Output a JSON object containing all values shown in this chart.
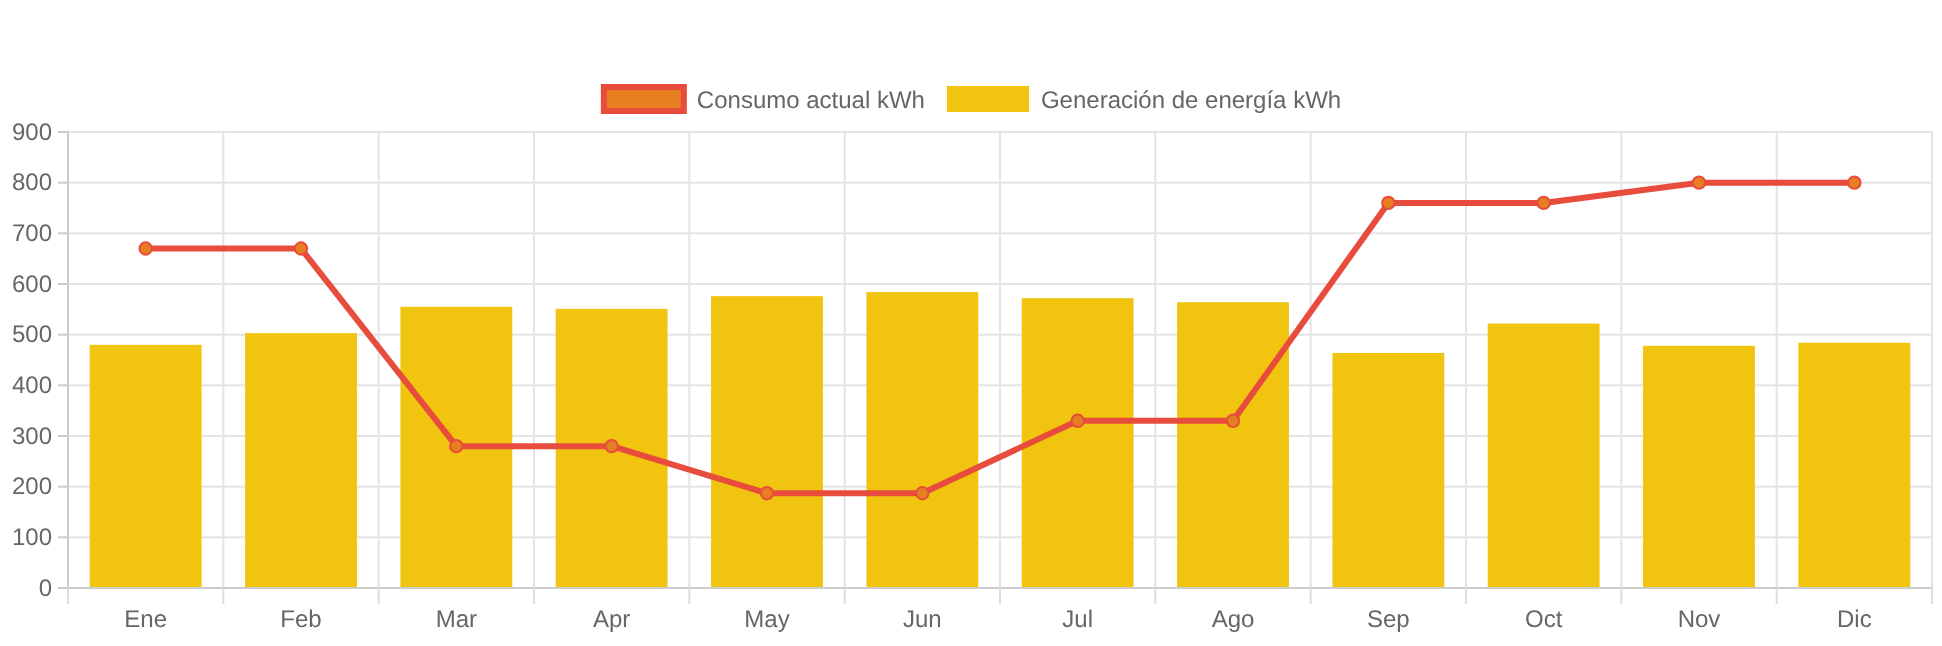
{
  "chart_data": {
    "type": "bar",
    "categories": [
      "Ene",
      "Feb",
      "Mar",
      "Apr",
      "May",
      "Jun",
      "Jul",
      "Ago",
      "Sep",
      "Oct",
      "Nov",
      "Dic"
    ],
    "series": [
      {
        "name": "Consumo actual kWh",
        "type": "line",
        "color": "#e74c3c",
        "values": [
          670,
          670,
          280,
          280,
          187,
          187,
          330,
          330,
          760,
          760,
          800,
          800
        ]
      },
      {
        "name": "Generación de energía kWh",
        "color": "#f1c40f",
        "values": [
          480,
          503,
          555,
          551,
          576,
          584,
          572,
          564,
          464,
          522,
          478,
          484
        ]
      }
    ],
    "ylim": [
      0,
      900
    ],
    "yticks": [
      0,
      100,
      200,
      300,
      400,
      500,
      600,
      700,
      800,
      900
    ],
    "grid": true,
    "legend": "top",
    "marker": "circle"
  }
}
